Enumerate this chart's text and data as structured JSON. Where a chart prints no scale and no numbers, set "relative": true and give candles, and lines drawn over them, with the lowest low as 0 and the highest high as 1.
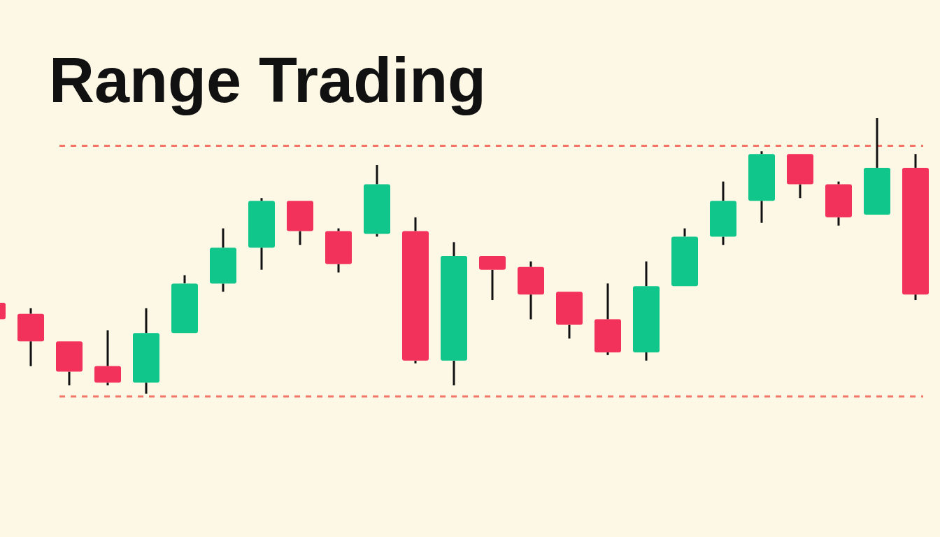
{
  "chart_data": {
    "type": "candlestick",
    "title": "Range Trading",
    "relative": true,
    "categories": [
      null,
      null,
      null,
      null,
      null,
      null,
      null,
      null,
      null,
      null,
      null,
      null,
      null,
      null,
      null,
      null,
      null,
      null,
      null,
      null,
      null,
      null,
      null,
      null,
      null
    ],
    "ohlc": [
      [
        0.33,
        0.33,
        0.27,
        0.27
      ],
      [
        0.29,
        0.31,
        0.1,
        0.19
      ],
      [
        0.19,
        0.19,
        0.03,
        0.08
      ],
      [
        0.1,
        0.23,
        0.03,
        0.04
      ],
      [
        0.04,
        0.31,
        0,
        0.22
      ],
      [
        0.22,
        0.43,
        0.22,
        0.4
      ],
      [
        0.4,
        0.6,
        0.37,
        0.53
      ],
      [
        0.53,
        0.71,
        0.45,
        0.7
      ],
      [
        0.7,
        0.7,
        0.54,
        0.59
      ],
      [
        0.59,
        0.6,
        0.44,
        0.47
      ],
      [
        0.58,
        0.83,
        0.57,
        0.76
      ],
      [
        0.59,
        0.64,
        0.11,
        0.12
      ],
      [
        0.12,
        0.55,
        0.03,
        0.5
      ],
      [
        0.5,
        0.5,
        0.34,
        0.45
      ],
      [
        0.46,
        0.48,
        0.27,
        0.36
      ],
      [
        0.37,
        0.37,
        0.2,
        0.25
      ],
      [
        0.27,
        0.4,
        0.14,
        0.15
      ],
      [
        0.15,
        0.48,
        0.12,
        0.39
      ],
      [
        0.39,
        0.6,
        0.39,
        0.57
      ],
      [
        0.57,
        0.77,
        0.54,
        0.7
      ],
      [
        0.7,
        0.88,
        0.62,
        0.87
      ],
      [
        0.87,
        0.87,
        0.71,
        0.76
      ],
      [
        0.76,
        0.77,
        0.61,
        0.64
      ],
      [
        0.65,
        1,
        0.65,
        0.82
      ],
      [
        0.82,
        0.87,
        0.34,
        0.36
      ]
    ],
    "colors": [
      "#f2325a",
      "#f2325a",
      "#f2325a",
      "#f2325a",
      "#10c68b",
      "#10c68b",
      "#10c68b",
      "#10c68b",
      "#f2325a",
      "#f2325a",
      "#10c68b",
      "#f2325a",
      "#10c68b",
      "#f2325a",
      "#f2325a",
      "#f2325a",
      "#f2325a",
      "#10c68b",
      "#10c68b",
      "#10c68b",
      "#10c68b",
      "#f2325a",
      "#f2325a",
      "#10c68b",
      "#f2325a"
    ],
    "ref_lines": [
      {
        "axis": "y",
        "value": 0.9,
        "color": "#f04a3a",
        "line_style": "dashed"
      },
      {
        "axis": "y",
        "value": -0.01,
        "color": "#f04a3a",
        "line_style": "dashed"
      }
    ]
  }
}
